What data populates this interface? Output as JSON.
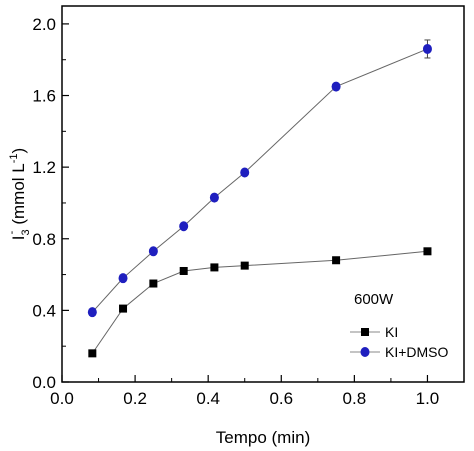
{
  "chart_data": {
    "type": "line",
    "xlabel": "Tempo (min)",
    "ylabel_main": "I",
    "ylabel_sub": "3",
    "ylabel_sup": "-",
    "ylabel_rest": "(mmol L",
    "ylabel_rest_sup": "-1",
    "ylabel_close": ")",
    "annotation": "600W",
    "xlim": [
      0.0,
      1.1
    ],
    "ylim": [
      0.0,
      2.1
    ],
    "xticks": [
      "0.0",
      "0.2",
      "0.4",
      "0.6",
      "0.8",
      "1.0"
    ],
    "yticks": [
      "0.0",
      "0.4",
      "0.8",
      "1.2",
      "1.6",
      "2.0"
    ],
    "grid": false,
    "legend_position": "bottom-right",
    "series": [
      {
        "name": "KI",
        "marker": "square",
        "color": "#000000",
        "x": [
          0.083,
          0.167,
          0.25,
          0.333,
          0.417,
          0.5,
          0.75,
          1.0
        ],
        "y": [
          0.16,
          0.41,
          0.55,
          0.62,
          0.64,
          0.65,
          0.68,
          0.73
        ]
      },
      {
        "name": "KI+DMSO",
        "marker": "circle",
        "color": "#1f1fbf",
        "x": [
          0.083,
          0.167,
          0.25,
          0.333,
          0.417,
          0.5,
          0.75,
          1.0
        ],
        "y": [
          0.39,
          0.58,
          0.73,
          0.87,
          1.03,
          1.17,
          1.65,
          1.86
        ]
      }
    ]
  }
}
